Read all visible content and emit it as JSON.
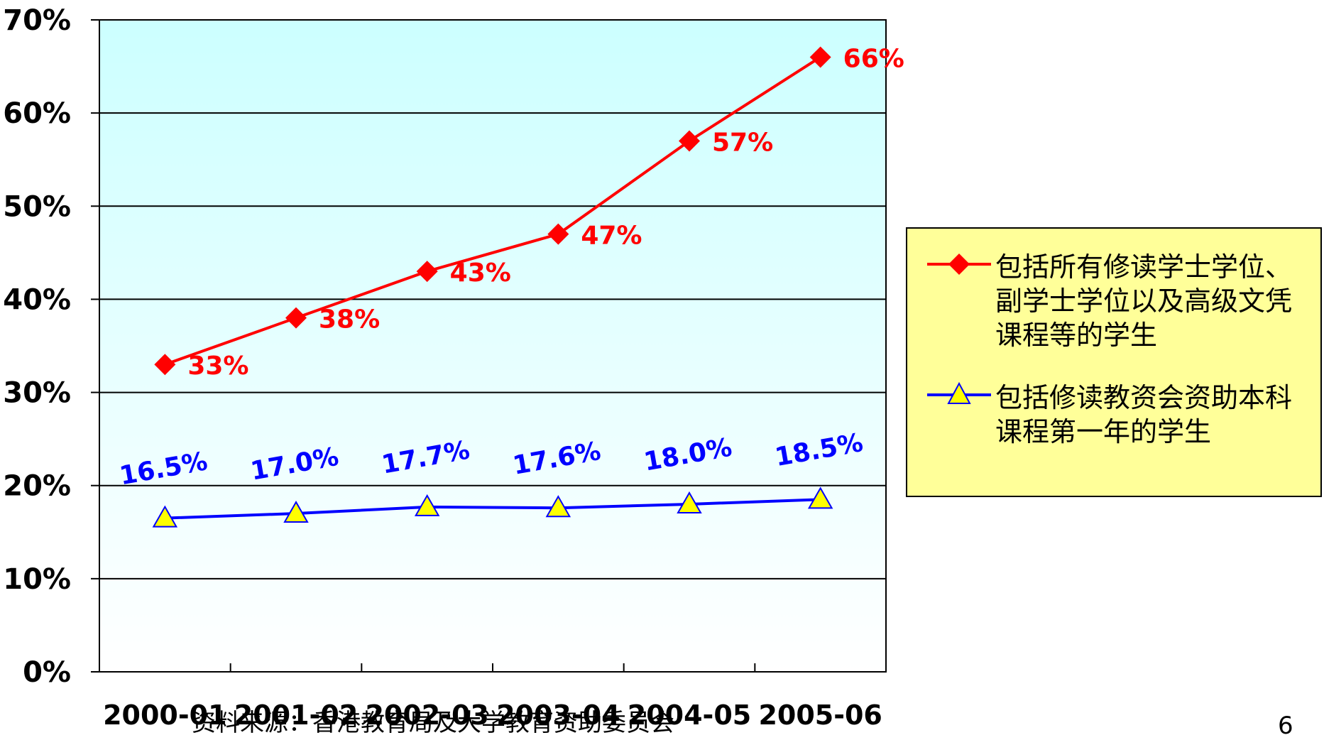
{
  "chart_data": {
    "type": "line",
    "categories": [
      "2000-01",
      "2001-02",
      "2002-03",
      "2003-04",
      "2004-05",
      "2005-06"
    ],
    "ylim": [
      0,
      70
    ],
    "yticks": [
      "0%",
      "10%",
      "20%",
      "30%",
      "40%",
      "50%",
      "60%",
      "70%"
    ],
    "grid": true,
    "legend_position": "right",
    "series": [
      {
        "name": "包括所有修读学士学位、副学士学位以及高级文凭课程等的学生",
        "values": [
          33,
          38,
          43,
          47,
          57,
          66
        ],
        "labels": [
          "33%",
          "38%",
          "43%",
          "47%",
          "57%",
          "66%"
        ],
        "color": "#ff0000",
        "marker": "diamond",
        "marker_fill": "#ff0000"
      },
      {
        "name": "包括修读教资会资助本科课程第一年的学生",
        "values": [
          16.5,
          17.0,
          17.7,
          17.6,
          18.0,
          18.5
        ],
        "labels": [
          "16.5%",
          "17.0%",
          "17.7%",
          "17.6%",
          "18.0%",
          "18.5%"
        ],
        "color": "#0000ff",
        "marker": "triangle",
        "marker_fill": "#ffff00"
      }
    ],
    "background_top_color": "#ccffff",
    "background_bottom_color": "#ffffff",
    "legend_background": "#ffff99"
  },
  "source_text": "资料来源：香港教育局及大学教育资助委员会",
  "page_number": "6"
}
